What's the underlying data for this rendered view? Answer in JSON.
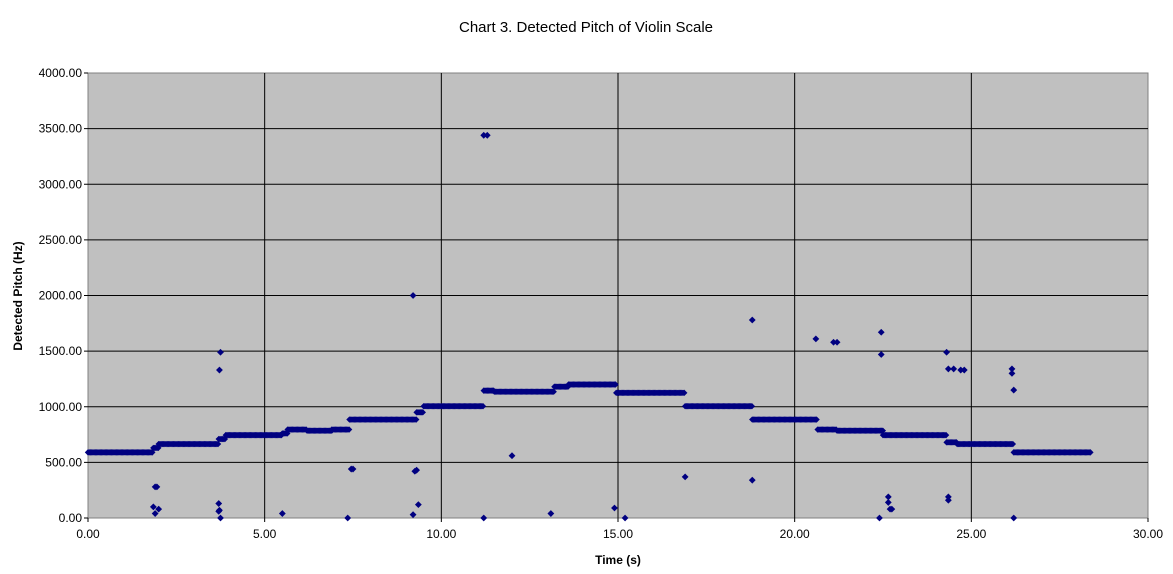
{
  "chart_data": {
    "type": "scatter",
    "title": "Chart 3. Detected Pitch of Violin Scale",
    "xlabel": "Time (s)",
    "ylabel": "Detected Pitch (Hz)",
    "xlim": [
      0,
      30
    ],
    "ylim": [
      0,
      4000
    ],
    "x_ticks": [
      "0.00",
      "5.00",
      "10.00",
      "15.00",
      "20.00",
      "25.00",
      "30.00"
    ],
    "y_ticks": [
      "0.00",
      "500.00",
      "1000.00",
      "1500.00",
      "2000.00",
      "2500.00",
      "3000.00",
      "3500.00",
      "4000.00"
    ],
    "grid": true,
    "legend": "none",
    "colors": {
      "marker": "#000080",
      "plot_bg": "#c0c0c0",
      "grid": "#000000"
    },
    "series": [
      {
        "segments": [
          {
            "x_start": 0.0,
            "x_end": 1.85,
            "y": 590
          },
          {
            "x_start": 1.85,
            "x_end": 2.0,
            "y": 630
          },
          {
            "x_start": 2.0,
            "x_end": 3.7,
            "y": 665
          },
          {
            "x_start": 3.7,
            "x_end": 3.9,
            "y": 710
          },
          {
            "x_start": 3.9,
            "x_end": 5.5,
            "y": 745
          },
          {
            "x_start": 5.5,
            "x_end": 5.65,
            "y": 760
          },
          {
            "x_start": 5.65,
            "x_end": 6.2,
            "y": 795
          },
          {
            "x_start": 6.2,
            "x_end": 6.9,
            "y": 785
          },
          {
            "x_start": 6.9,
            "x_end": 7.4,
            "y": 795
          },
          {
            "x_start": 7.4,
            "x_end": 9.3,
            "y": 885
          },
          {
            "x_start": 9.3,
            "x_end": 9.5,
            "y": 950
          },
          {
            "x_start": 9.5,
            "x_end": 11.2,
            "y": 1005
          },
          {
            "x_start": 11.2,
            "x_end": 11.5,
            "y": 1145
          },
          {
            "x_start": 11.5,
            "x_end": 13.2,
            "y": 1135
          },
          {
            "x_start": 13.2,
            "x_end": 13.6,
            "y": 1180
          },
          {
            "x_start": 13.6,
            "x_end": 14.95,
            "y": 1200
          },
          {
            "x_start": 14.95,
            "x_end": 16.9,
            "y": 1125
          },
          {
            "x_start": 16.9,
            "x_end": 18.8,
            "y": 1005
          },
          {
            "x_start": 18.8,
            "x_end": 20.65,
            "y": 885
          },
          {
            "x_start": 20.65,
            "x_end": 21.2,
            "y": 795
          },
          {
            "x_start": 21.2,
            "x_end": 22.5,
            "y": 785
          },
          {
            "x_start": 22.5,
            "x_end": 24.3,
            "y": 745
          },
          {
            "x_start": 24.3,
            "x_end": 24.6,
            "y": 680
          },
          {
            "x_start": 24.6,
            "x_end": 26.2,
            "y": 665
          },
          {
            "x_start": 26.2,
            "x_end": 28.4,
            "y": 590
          }
        ],
        "points": [
          [
            1.85,
            100
          ],
          [
            1.9,
            280
          ],
          [
            1.95,
            280
          ],
          [
            1.9,
            40
          ],
          [
            2.0,
            80
          ],
          [
            3.72,
            1330
          ],
          [
            3.75,
            1490
          ],
          [
            3.7,
            130
          ],
          [
            3.7,
            60
          ],
          [
            3.72,
            70
          ],
          [
            3.75,
            0
          ],
          [
            5.5,
            40
          ],
          [
            7.35,
            0
          ],
          [
            7.5,
            440
          ],
          [
            7.45,
            440
          ],
          [
            9.2,
            2000
          ],
          [
            9.25,
            420
          ],
          [
            9.3,
            430
          ],
          [
            9.2,
            30
          ],
          [
            9.35,
            120
          ],
          [
            11.2,
            3440
          ],
          [
            11.3,
            3440
          ],
          [
            11.2,
            0
          ],
          [
            12.0,
            560
          ],
          [
            13.1,
            40
          ],
          [
            14.9,
            90
          ],
          [
            15.2,
            0
          ],
          [
            16.9,
            370
          ],
          [
            18.8,
            1780
          ],
          [
            18.8,
            340
          ],
          [
            20.6,
            1610
          ],
          [
            21.1,
            1580
          ],
          [
            21.2,
            1580
          ],
          [
            22.45,
            1670
          ],
          [
            22.45,
            1470
          ],
          [
            22.4,
            0
          ],
          [
            22.65,
            190
          ],
          [
            22.65,
            140
          ],
          [
            22.75,
            80
          ],
          [
            22.7,
            80
          ],
          [
            24.3,
            1490
          ],
          [
            24.35,
            1340
          ],
          [
            24.5,
            1340
          ],
          [
            24.7,
            1330
          ],
          [
            24.8,
            1330
          ],
          [
            24.35,
            190
          ],
          [
            24.35,
            160
          ],
          [
            26.15,
            1340
          ],
          [
            26.15,
            1300
          ],
          [
            26.2,
            1150
          ],
          [
            26.2,
            0
          ]
        ]
      }
    ]
  }
}
